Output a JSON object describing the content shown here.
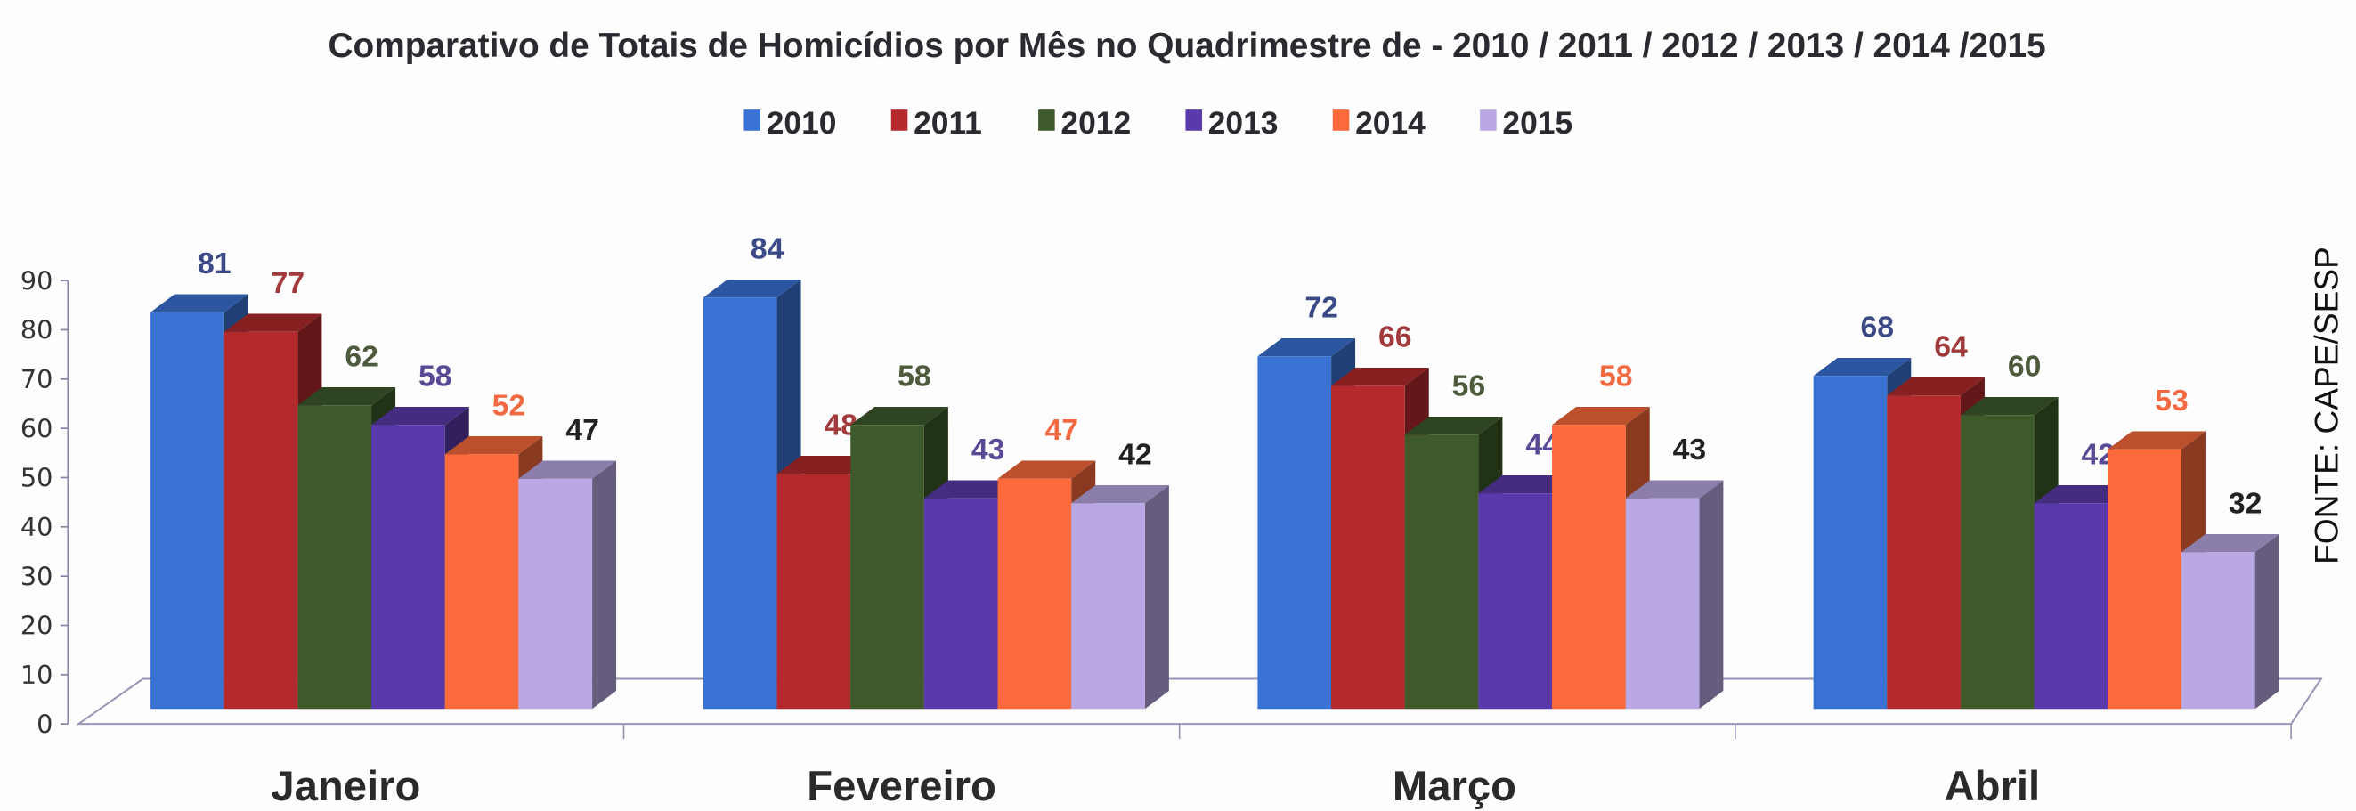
{
  "chart_data": {
    "type": "bar",
    "title": "Comparativo de Totais de Homicídios por Mês  no Quadrimestre de  - 2010 / 2011 / 2012 / 2013 / 2014 /2015",
    "source": "FONTE: CAPE/SESP",
    "categories": [
      "Janeiro",
      "Fevereiro",
      "Março",
      "Abril"
    ],
    "series": [
      {
        "name": "2010",
        "color": "#3a72d4",
        "label_color": "#3b4a86",
        "values": [
          81,
          84,
          72,
          68
        ]
      },
      {
        "name": "2011",
        "color": "#b42a2c",
        "label_color": "#a23a3c",
        "values": [
          77,
          48,
          66,
          64
        ]
      },
      {
        "name": "2012",
        "color": "#3e5a2a",
        "label_color": "#4e5a3c",
        "values": [
          62,
          58,
          56,
          60
        ]
      },
      {
        "name": "2013",
        "color": "#5a3aaa",
        "label_color": "#5a4a96",
        "values": [
          58,
          43,
          44,
          42
        ]
      },
      {
        "name": "2014",
        "color": "#fa6a3a",
        "label_color": "#f26a42",
        "values": [
          52,
          47,
          58,
          53
        ]
      },
      {
        "name": "2015",
        "color": "#b9a8e4",
        "label_color": "#222222",
        "values": [
          47,
          42,
          43,
          32
        ]
      }
    ],
    "yticks": [
      "0",
      "10",
      "20",
      "30",
      "40",
      "50",
      "60",
      "70",
      "80",
      "90"
    ],
    "ylim": [
      0,
      90
    ],
    "xlabel": "",
    "ylabel": "",
    "legend_position": "top-center",
    "grid": false
  }
}
